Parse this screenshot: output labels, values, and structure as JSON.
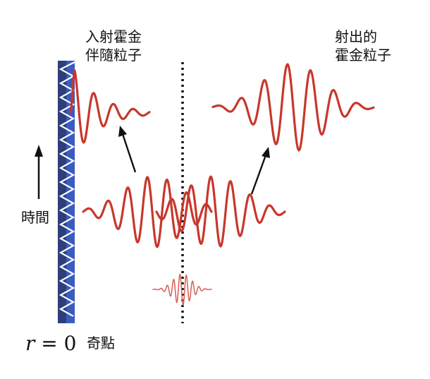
{
  "labels": {
    "infalling_line1": "入射霍金",
    "infalling_line2": "伴隨粒子",
    "outgoing_line1": "射出的",
    "outgoing_line2": "霍金粒子",
    "time": "時間",
    "r_var": "r",
    "r_eq": " = 0",
    "singularity": "奇點"
  },
  "colors": {
    "wave": "#c8372c",
    "singularity_wall": "#3a5bbf",
    "wall_dark": "#2d3f7a",
    "ink": "#111111"
  }
}
